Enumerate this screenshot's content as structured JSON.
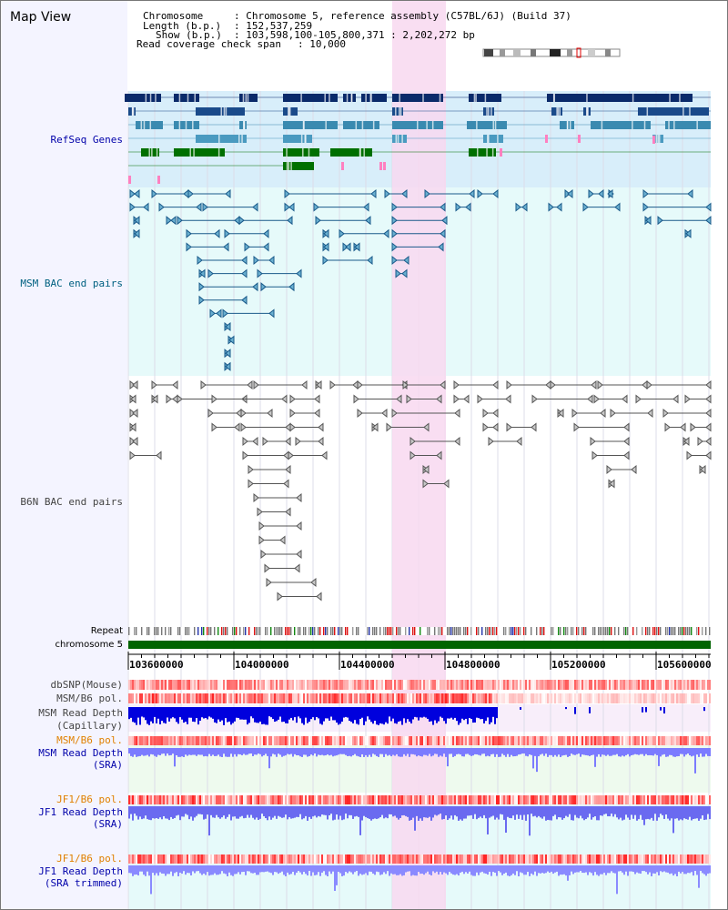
{
  "title": "Map View",
  "header": {
    "chromosome_key": "Chromosome",
    "chromosome_val": ": Chromosome 5, reference assembly (C57BL/6J) (Build 37)",
    "length_key": "Length (b.p.)",
    "length_val": ": 152,537,259",
    "show_key": "Show (b.p.)",
    "show_val": ": 103,598,100-105,800,371 : 2,202,272 bp",
    "coverage_key": "Read coverage check span",
    "coverage_val": ": 10,000"
  },
  "tracks": {
    "refseq": "RefSeq Genes",
    "msm_bac": "MSM BAC end pairs",
    "b6n_bac": "B6N BAC end pairs",
    "repeat": "Repeat",
    "chromosome": "chromosome 5",
    "dbsnp": "dbSNP(Mouse)",
    "msm_pol1": "MSM/B6 pol.",
    "msm_cap_1": "MSM Read Depth",
    "msm_cap_2": "(Capillary)",
    "msm_pol2": "MSM/B6 pol.",
    "msm_sra_1": "MSM Read Depth",
    "msm_sra_2": "(SRA)",
    "jf1_pol1": "JF1/B6 pol.",
    "jf1_sra_1": "JF1 Read Depth",
    "jf1_sra_2": "(SRA)",
    "jf1_pol2": "JF1/B6 pol.",
    "jf1_trim_1": "JF1 Read Depth",
    "jf1_trim_2": "(SRA trimmed)"
  },
  "axis": {
    "ticks": [
      "103600000",
      "104000000",
      "104400000",
      "104800000",
      "105200000",
      "105600000"
    ]
  },
  "colors": {
    "refseq_bg": "#d8eefa",
    "msm_bac_bg": "#e6fafa",
    "highlight": "#f8d8f0",
    "chromosome_bar": "#006400",
    "depth_capillary": "#0000dd",
    "depth_sra": "#7b7bff",
    "pol_red": "#ff4040",
    "label_blue": "#0000aa",
    "label_orange": "#e08000",
    "label_gray": "#444444"
  }
}
